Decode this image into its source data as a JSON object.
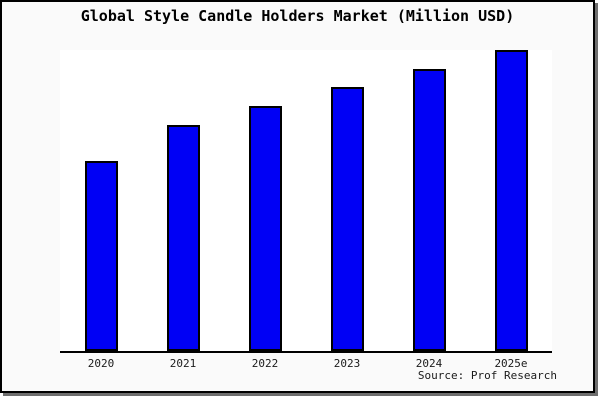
{
  "window": {
    "title": "Global Style Candle Holders Market (Million USD)",
    "source_note": "Source: Prof Research"
  },
  "colors": {
    "bar_fill": "#0000F5",
    "bar_border": "#000000",
    "frame_background": "#FAFAFA",
    "plot_background": "#FFFFFF",
    "axis": "#000000",
    "text": "#1A1A1A",
    "shadow": "#6E6E6E"
  },
  "chart_data": {
    "type": "bar",
    "title": "Global Style Candle Holders Market (Million USD)",
    "categories": [
      "2020",
      "2021",
      "2022",
      "2023",
      "2024",
      "2025e"
    ],
    "values": [
      63.1,
      75.1,
      81.4,
      87.7,
      93.7,
      100
    ],
    "xlabel": "",
    "ylabel": "",
    "ylim": [
      0,
      100
    ],
    "grid": false,
    "legend": null,
    "y_axis_visible": false,
    "source": "Source: Prof Research"
  }
}
